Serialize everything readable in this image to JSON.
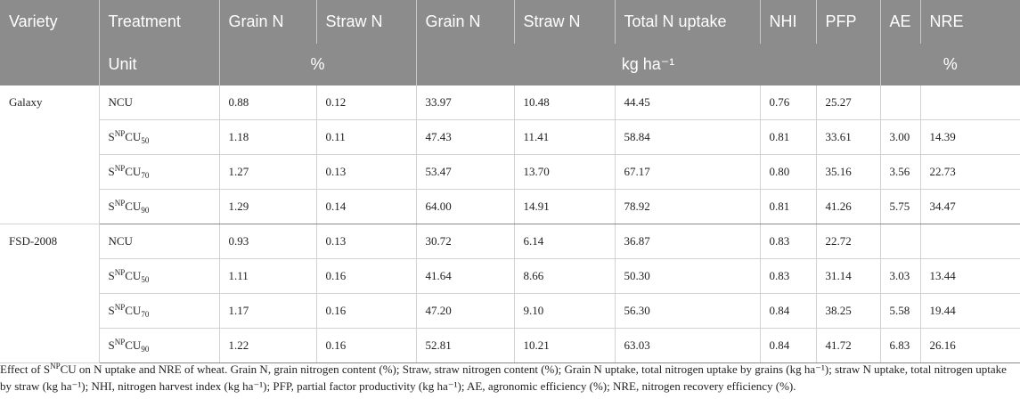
{
  "header": {
    "columns": [
      "Variety",
      "Treatment",
      "Grain N",
      "Straw N",
      "Grain N",
      "Straw N",
      "Total N uptake",
      "NHI",
      "PFP",
      "AE",
      "NRE"
    ],
    "unit_row": {
      "label": "Unit",
      "pct1": "%",
      "kg": "kg ha⁻¹",
      "pct2": "%"
    }
  },
  "groups": [
    {
      "variety": "Galaxy",
      "rows": [
        {
          "treat_base": "NCU",
          "treat_sup": "",
          "treat_suffix": "",
          "treat_sub": "",
          "values": [
            "0.88",
            "0.12",
            "33.97",
            "10.48",
            "44.45",
            "0.76",
            "25.27",
            "",
            ""
          ]
        },
        {
          "treat_base": "S",
          "treat_sup": "NP",
          "treat_suffix": "CU",
          "treat_sub": "50",
          "values": [
            "1.18",
            "0.11",
            "47.43",
            "11.41",
            "58.84",
            "0.81",
            "33.61",
            "3.00",
            "14.39"
          ]
        },
        {
          "treat_base": "S",
          "treat_sup": "NP",
          "treat_suffix": "CU",
          "treat_sub": "70",
          "values": [
            "1.27",
            "0.13",
            "53.47",
            "13.70",
            "67.17",
            "0.80",
            "35.16",
            "3.56",
            "22.73"
          ]
        },
        {
          "treat_base": "S",
          "treat_sup": "NP",
          "treat_suffix": "CU",
          "treat_sub": "90",
          "values": [
            "1.29",
            "0.14",
            "64.00",
            "14.91",
            "78.92",
            "0.81",
            "41.26",
            "5.75",
            "34.47"
          ]
        }
      ]
    },
    {
      "variety": "FSD-2008",
      "rows": [
        {
          "treat_base": "NCU",
          "treat_sup": "",
          "treat_suffix": "",
          "treat_sub": "",
          "values": [
            "0.93",
            "0.13",
            "30.72",
            "6.14",
            "36.87",
            "0.83",
            "22.72",
            "",
            ""
          ]
        },
        {
          "treat_base": "S",
          "treat_sup": "NP",
          "treat_suffix": "CU",
          "treat_sub": "50",
          "values": [
            "1.11",
            "0.16",
            "41.64",
            "8.66",
            "50.30",
            "0.83",
            "31.14",
            "3.03",
            "13.44"
          ]
        },
        {
          "treat_base": "S",
          "treat_sup": "NP",
          "treat_suffix": "CU",
          "treat_sub": "70",
          "values": [
            "1.17",
            "0.16",
            "47.20",
            "9.10",
            "56.30",
            "0.84",
            "38.25",
            "5.58",
            "19.44"
          ]
        },
        {
          "treat_base": "S",
          "treat_sup": "NP",
          "treat_suffix": "CU",
          "treat_sub": "90",
          "values": [
            "1.22",
            "0.16",
            "52.81",
            "10.21",
            "63.03",
            "0.84",
            "41.72",
            "6.83",
            "26.16"
          ]
        }
      ]
    }
  ],
  "caption": {
    "pre": "Effect of S",
    "sup": "NP",
    "post": "CU on N uptake and NRE of wheat. Grain N, grain nitrogen content (%); Straw, straw nitrogen content (%); Grain N uptake, total nitrogen uptake by grains (kg ha⁻¹); straw N uptake, total nitrogen uptake by straw (kg ha⁻¹); NHI, nitrogen harvest index (kg ha⁻¹); PFP, partial factor productivity (kg ha⁻¹); AE, agronomic efficiency (%); NRE, nitrogen recovery efficiency (%)."
  }
}
